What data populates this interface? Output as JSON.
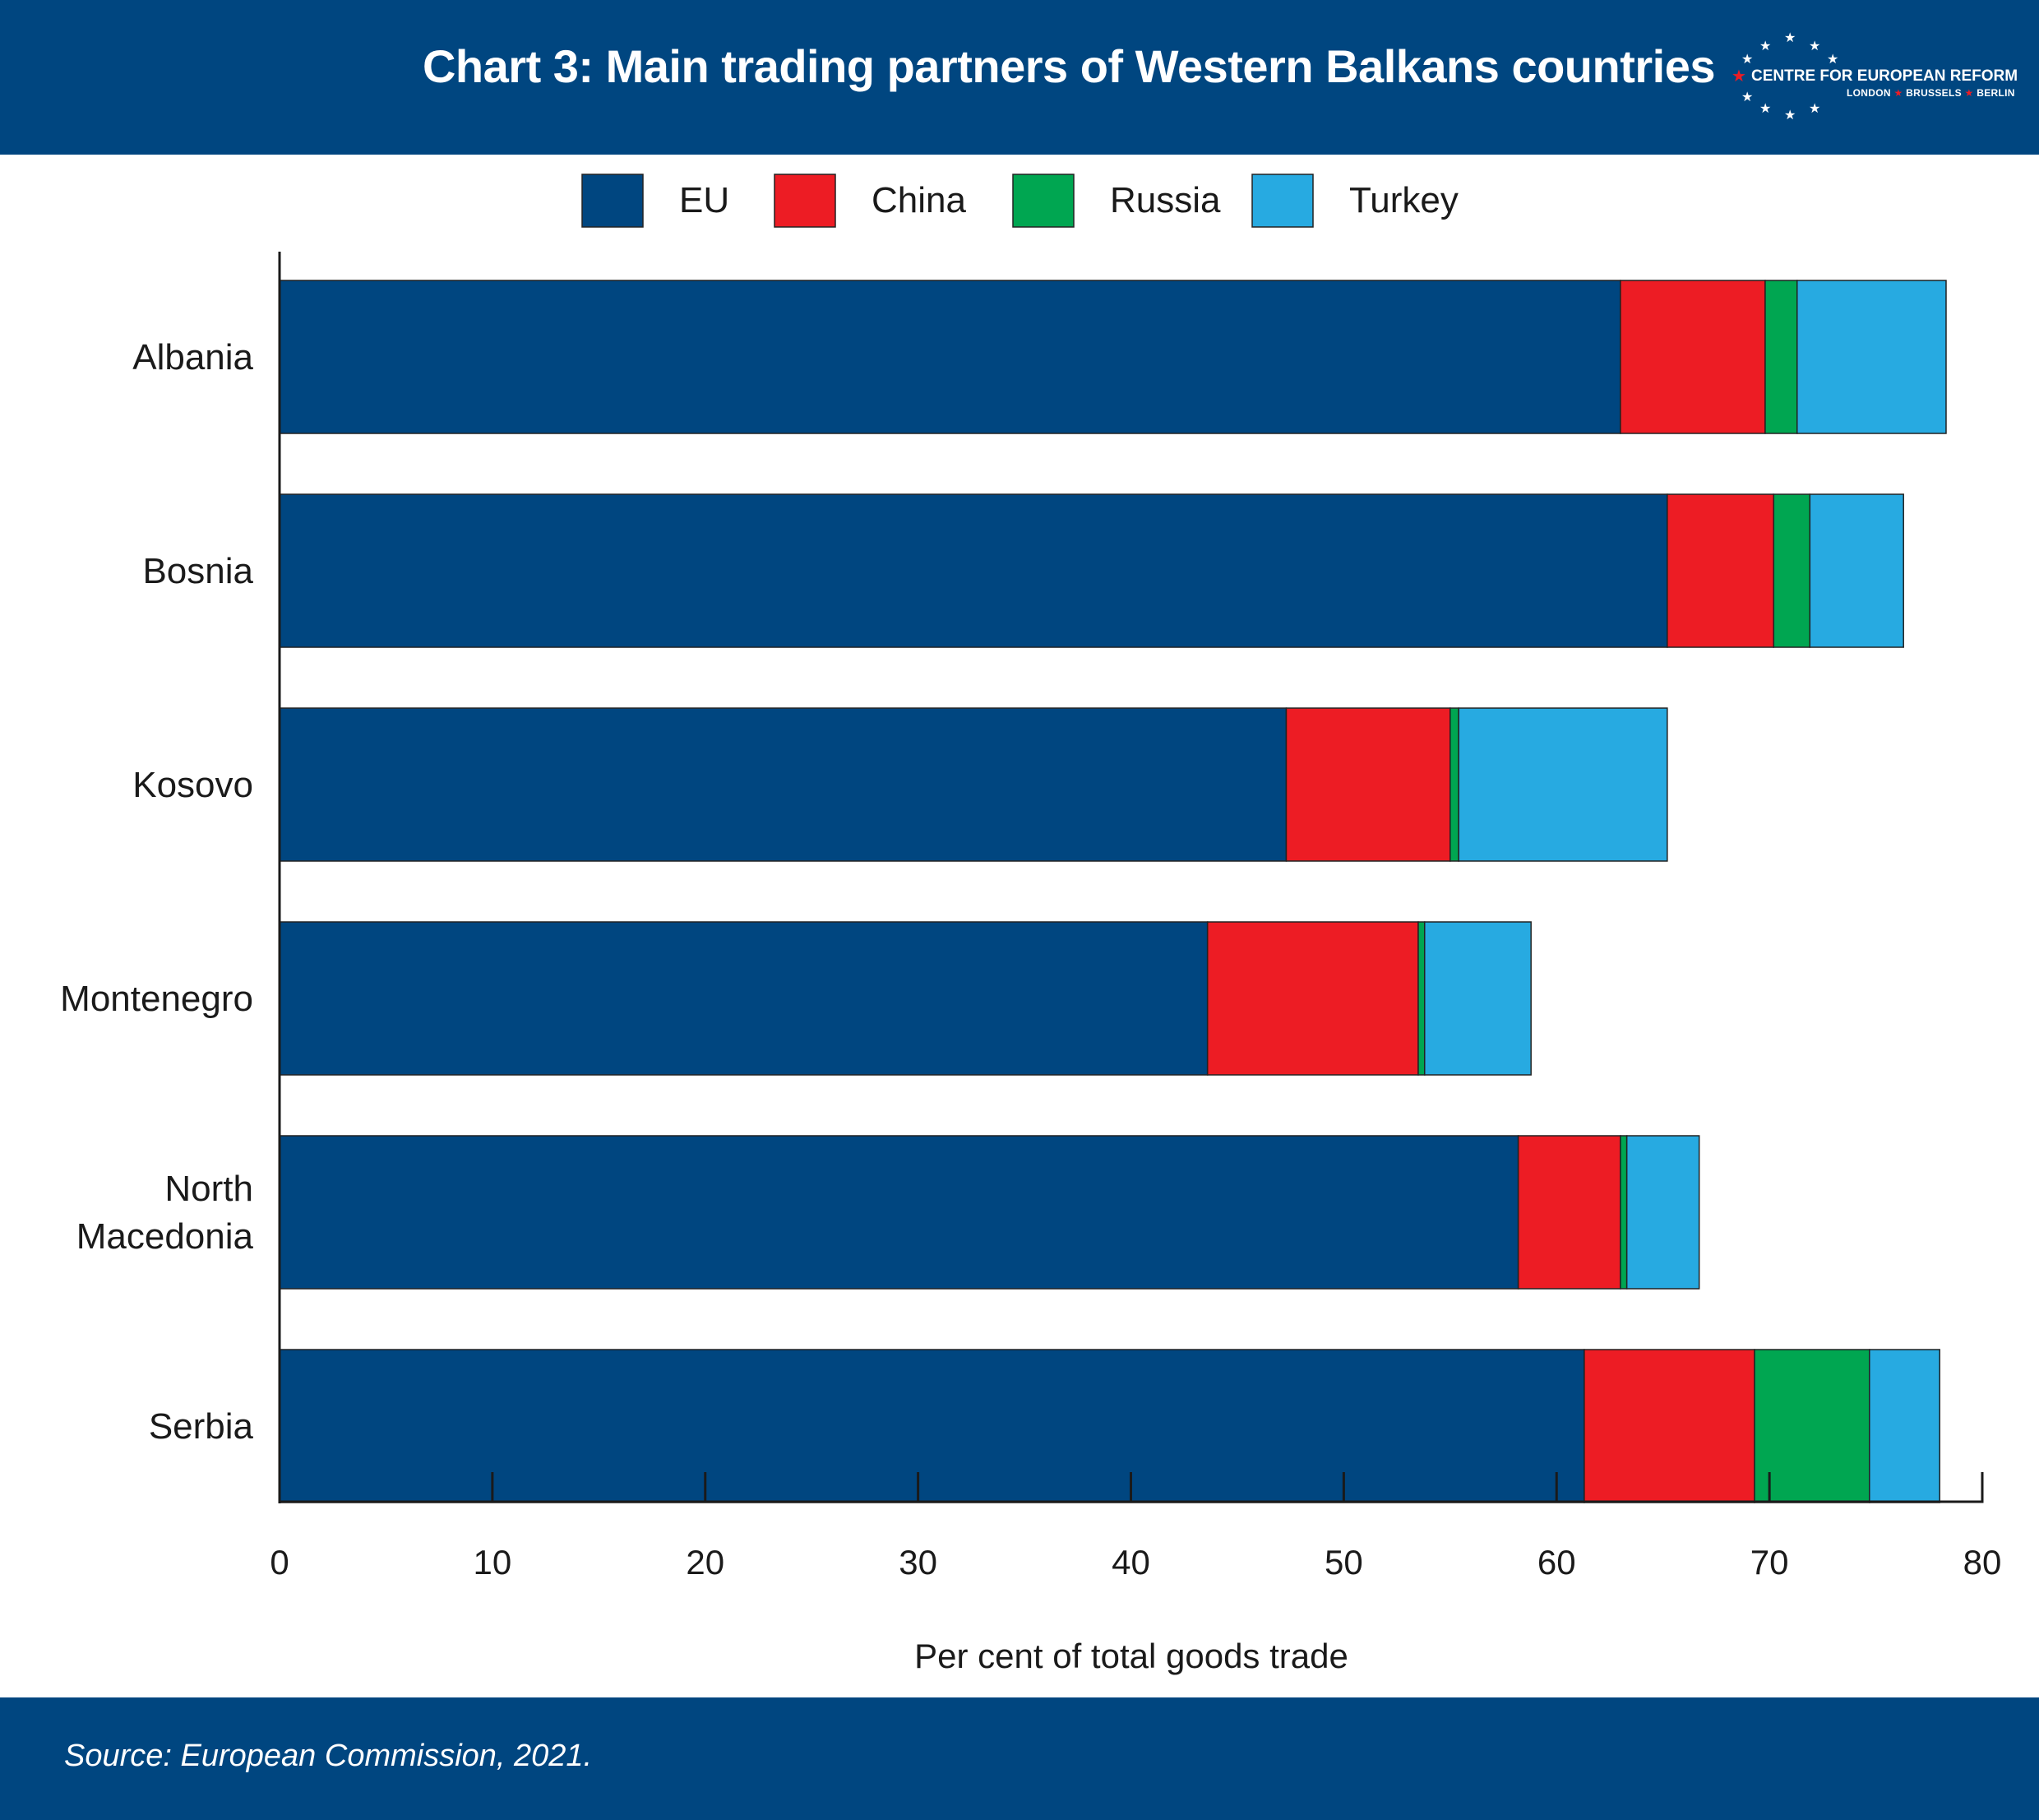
{
  "header": {
    "title": "Chart 3: Main trading partners of Western Balkans countries",
    "logo": {
      "name": "CENTRE FOR EUROPEAN REFORM",
      "city1": "LONDON",
      "city2": "BRUSSELS",
      "city3": "BERLIN"
    }
  },
  "footer": {
    "source": "Source: European Commission, 2021."
  },
  "colors": {
    "brand": "#004680",
    "EU": "#004680",
    "China": "#ed1c24",
    "Russia": "#00a651",
    "Turkey": "#27aae1"
  },
  "chart_data": {
    "type": "bar",
    "orientation": "horizontal",
    "stacked": true,
    "categories": [
      "Albania",
      "Bosnia",
      "Kosovo",
      "Montenegro",
      "North Macedonia",
      "Serbia"
    ],
    "series": [
      {
        "name": "EU",
        "values": [
          63.0,
          65.2,
          47.3,
          43.6,
          58.2,
          61.3
        ]
      },
      {
        "name": "China",
        "values": [
          6.8,
          5.0,
          7.7,
          9.9,
          4.8,
          8.0
        ]
      },
      {
        "name": "Russia",
        "values": [
          1.5,
          1.7,
          0.4,
          0.3,
          0.3,
          5.4
        ]
      },
      {
        "name": "Turkey",
        "values": [
          7.0,
          4.4,
          9.8,
          5.0,
          3.4,
          3.3
        ]
      }
    ],
    "xlabel": "Per cent of total goods trade",
    "ylabel": "",
    "xlim": [
      0,
      80
    ],
    "xticks": [
      0,
      10,
      20,
      30,
      40,
      50,
      60,
      70,
      80
    ],
    "grid": false,
    "legend": "top-center"
  }
}
